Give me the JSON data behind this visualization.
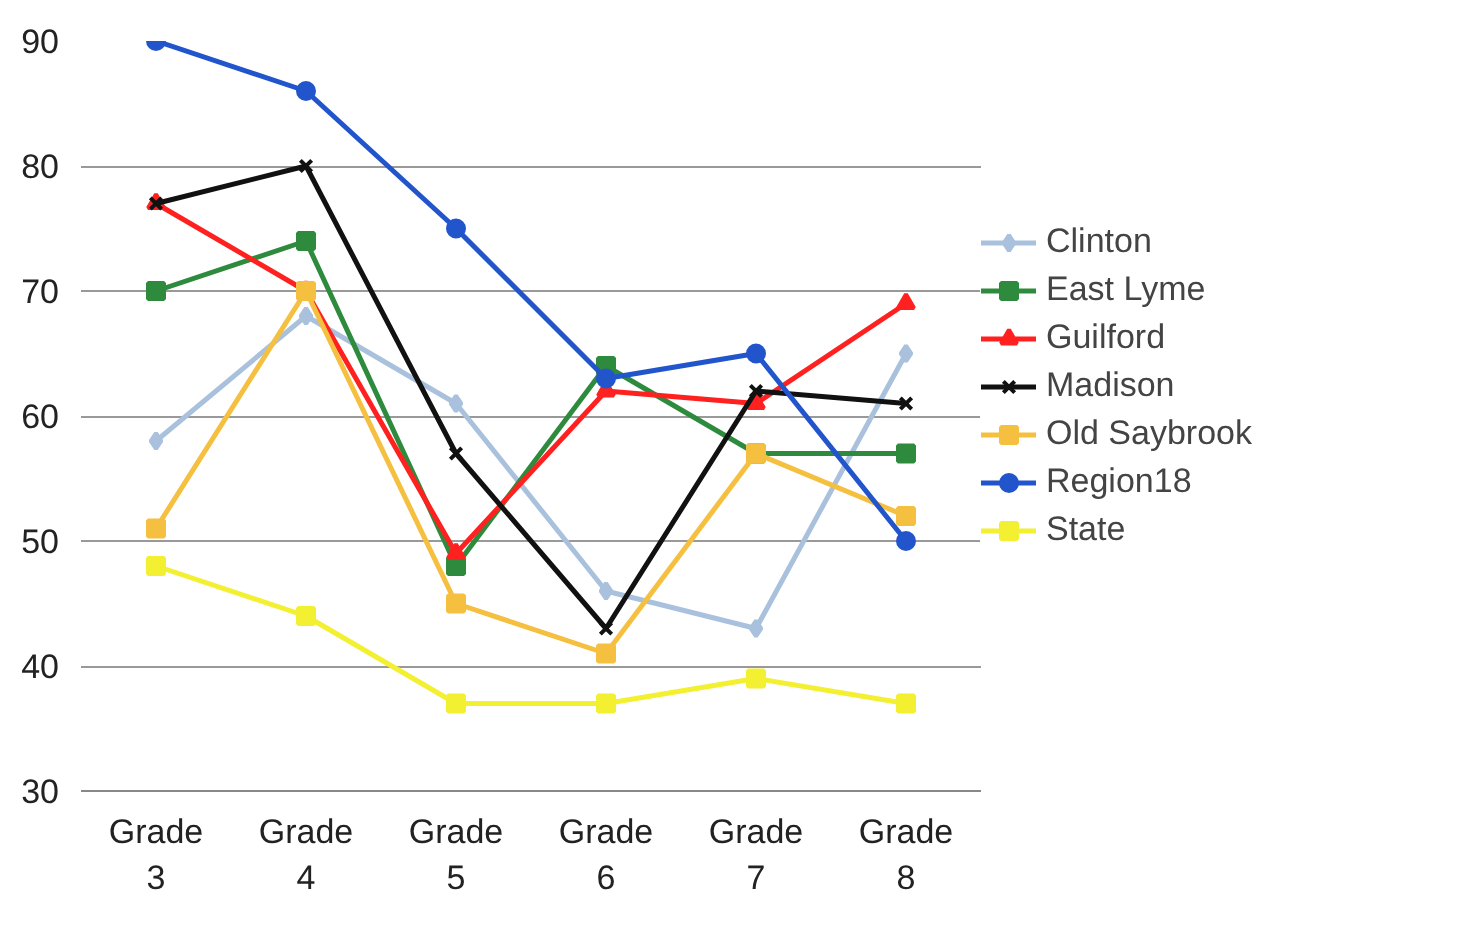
{
  "chart_data": {
    "type": "line",
    "categories": [
      "Grade 3",
      "Grade 4",
      "Grade 5",
      "Grade 6",
      "Grade 7",
      "Grade 8"
    ],
    "ylim": [
      30,
      90
    ],
    "yticks": [
      30,
      40,
      50,
      60,
      70,
      80,
      90
    ],
    "grid": "y",
    "legend": "right",
    "line_style": "solid",
    "series": [
      {
        "name": "Clinton",
        "color": "#a9c1dc",
        "marker": "diamond",
        "values": [
          58,
          68,
          61,
          46,
          43,
          65
        ]
      },
      {
        "name": "East Lyme",
        "color": "#2e8b3e",
        "marker": "square",
        "values": [
          70,
          74,
          48,
          64,
          57,
          57
        ]
      },
      {
        "name": "Guilford",
        "color": "#ff2020",
        "marker": "triangle",
        "values": [
          77,
          70,
          49,
          62,
          61,
          69
        ]
      },
      {
        "name": "Madison",
        "color": "#111111",
        "marker": "cross",
        "values": [
          77,
          80,
          57,
          43,
          62,
          61
        ]
      },
      {
        "name": "Old Saybrook",
        "color": "#f5c040",
        "marker": "square",
        "values": [
          51,
          70,
          45,
          41,
          57,
          52
        ]
      },
      {
        "name": "Region18",
        "color": "#2255cc",
        "marker": "circle",
        "values": [
          90,
          86,
          75,
          63,
          65,
          50
        ]
      },
      {
        "name": "State",
        "color": "#f2f030",
        "marker": "square",
        "values": [
          48,
          44,
          37,
          37,
          39,
          37
        ]
      }
    ]
  }
}
